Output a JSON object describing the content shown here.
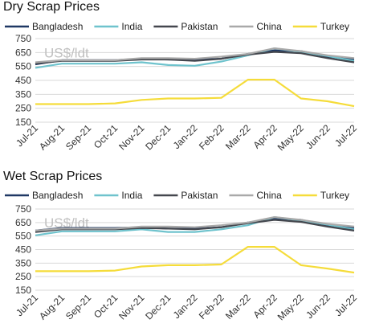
{
  "chart_data": [
    {
      "type": "line",
      "title": "Dry Scrap Prices",
      "unit_label": "US$/ldt",
      "x": [
        "Jul-21",
        "Aug-21",
        "Sep-21",
        "Oct-21",
        "Nov-21",
        "Dec-21",
        "Jan-22",
        "Feb-22",
        "Mar-22",
        "Apr-22",
        "May-22",
        "Jun-22",
        "Jul-22"
      ],
      "ylim": [
        150,
        750
      ],
      "yticks": [
        150,
        250,
        350,
        450,
        550,
        650,
        750
      ],
      "grid": true,
      "legend": "top",
      "series": [
        {
          "name": "Bangladesh",
          "color": "#1f3864",
          "values": [
            565,
            595,
            595,
            595,
            605,
            600,
            600,
            605,
            640,
            665,
            660,
            620,
            600
          ]
        },
        {
          "name": "India",
          "color": "#6fc3cd",
          "values": [
            540,
            570,
            570,
            570,
            580,
            560,
            555,
            585,
            630,
            680,
            655,
            625,
            590
          ]
        },
        {
          "name": "Pakistan",
          "color": "#44474e",
          "values": [
            570,
            590,
            590,
            590,
            600,
            600,
            590,
            605,
            635,
            655,
            645,
            610,
            580
          ]
        },
        {
          "name": "China",
          "color": "#a9a9a9",
          "values": [
            580,
            595,
            595,
            595,
            610,
            610,
            605,
            620,
            640,
            680,
            660,
            630,
            610
          ]
        },
        {
          "name": "Turkey",
          "color": "#f5dc3a",
          "values": [
            280,
            280,
            280,
            285,
            310,
            320,
            320,
            325,
            455,
            455,
            320,
            300,
            265
          ]
        }
      ]
    },
    {
      "type": "line",
      "title": "Wet Scrap Prices",
      "unit_label": "US$/ldt",
      "x": [
        "Jul-21",
        "Aug-21",
        "Sep-21",
        "Oct-21",
        "Nov-21",
        "Dec-21",
        "Jan-22",
        "Feb-22",
        "Mar-22",
        "Apr-22",
        "May-22",
        "Jun-22",
        "Jul-22"
      ],
      "ylim": [
        150,
        750
      ],
      "yticks": [
        150,
        250,
        350,
        450,
        550,
        650,
        750
      ],
      "grid": true,
      "legend": "top",
      "series": [
        {
          "name": "Bangladesh",
          "color": "#1f3864",
          "values": [
            590,
            610,
            610,
            610,
            615,
            605,
            605,
            615,
            650,
            680,
            670,
            630,
            610
          ]
        },
        {
          "name": "India",
          "color": "#6fc3cd",
          "values": [
            555,
            585,
            585,
            585,
            600,
            580,
            580,
            600,
            630,
            690,
            665,
            635,
            600
          ]
        },
        {
          "name": "Pakistan",
          "color": "#44474e",
          "values": [
            580,
            600,
            600,
            600,
            610,
            605,
            600,
            615,
            645,
            670,
            655,
            620,
            590
          ]
        },
        {
          "name": "China",
          "color": "#a9a9a9",
          "values": [
            590,
            605,
            605,
            605,
            620,
            620,
            615,
            630,
            650,
            690,
            670,
            640,
            620
          ]
        },
        {
          "name": "Turkey",
          "color": "#f5dc3a",
          "values": [
            290,
            290,
            290,
            295,
            325,
            335,
            335,
            340,
            470,
            470,
            335,
            310,
            280
          ]
        }
      ]
    }
  ]
}
